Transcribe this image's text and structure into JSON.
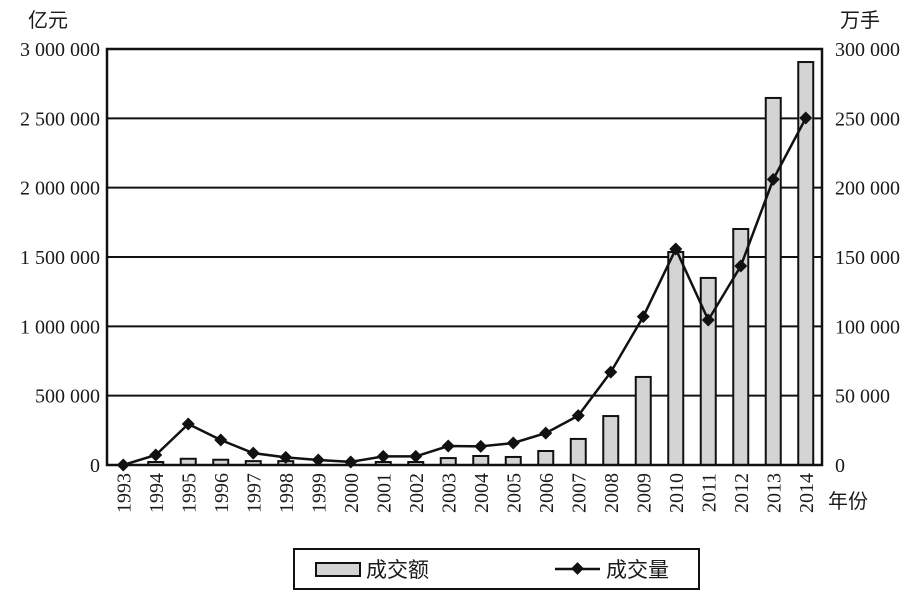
{
  "chart_data": {
    "type": "bar+line",
    "title": "",
    "xlabel": "年份",
    "ylabel_left": "亿元",
    "ylabel_right": "万手",
    "categories": [
      "1993",
      "1994",
      "1995",
      "1996",
      "1997",
      "1998",
      "1999",
      "2000",
      "2001",
      "2002",
      "2003",
      "2004",
      "2005",
      "2006",
      "2007",
      "2008",
      "2009",
      "2010",
      "2011",
      "2012",
      "2013",
      "2014"
    ],
    "series": [
      {
        "name": "成交额",
        "type": "bar",
        "axis": "left",
        "values": [
          0,
          16000,
          45000,
          38000,
          28000,
          28000,
          0,
          0,
          20000,
          20000,
          50000,
          65000,
          58000,
          101000,
          188000,
          353000,
          635000,
          1536000,
          1349000,
          1702000,
          2647000,
          2906000
        ]
      },
      {
        "name": "成交量",
        "type": "line",
        "axis": "right",
        "marker": "diamond",
        "values": [
          0,
          7200,
          29600,
          18000,
          8600,
          5500,
          3600,
          2200,
          6200,
          6200,
          13700,
          13400,
          15900,
          23000,
          35600,
          67000,
          107000,
          155800,
          104600,
          143500,
          206000,
          250200
        ]
      }
    ],
    "ylim_left": [
      0,
      3000000
    ],
    "ylim_right": [
      0,
      300000
    ],
    "yticks_left": [
      "0",
      "500 000",
      "1 000 000",
      "1 500 000",
      "2 000 000",
      "2 500 000",
      "3 000 000"
    ],
    "yticks_right": [
      "0",
      "50 000",
      "100 000",
      "150 000",
      "200 000",
      "250 000",
      "300 000"
    ],
    "grid": true,
    "legend_position": "bottom"
  },
  "labels": {
    "left_unit": "亿元",
    "right_unit": "万手",
    "x_unit": "年份",
    "legend_bar": "成交额",
    "legend_line": "成交量"
  }
}
